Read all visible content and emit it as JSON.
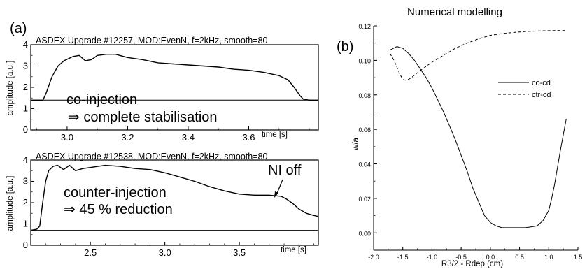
{
  "panel_labels": {
    "a": "(a)",
    "b": "(b)"
  },
  "chart_data": [
    {
      "type": "line",
      "header": "ASDEX Upgrade #12257, MOD:EvenN, f=2kHz, smooth=80",
      "xlabel": "time [s]",
      "ylabel": "amplitude [a.u.]",
      "xlim": [
        2.88,
        3.83
      ],
      "ylim": [
        0,
        4
      ],
      "xticks": [
        "3.0",
        "3.2",
        "3.4",
        "3.6"
      ],
      "yticks": [
        "0",
        "1",
        "2",
        "3",
        "4"
      ],
      "annotations": [
        "co-injection",
        "⇒ complete stabilisation"
      ],
      "baseline": 1.4,
      "grid": false,
      "series": [
        {
          "x": [
            2.88,
            2.92,
            2.93,
            2.95,
            2.97,
            2.99,
            3.02,
            3.04,
            3.06,
            3.08,
            3.1,
            3.13,
            3.16,
            3.2,
            3.25,
            3.3,
            3.35,
            3.4,
            3.45,
            3.5,
            3.55,
            3.6,
            3.65,
            3.7,
            3.73,
            3.75,
            3.77,
            3.78,
            3.8,
            3.83
          ],
          "y": [
            1.4,
            1.4,
            1.7,
            2.5,
            3.0,
            3.25,
            3.45,
            3.5,
            3.25,
            3.3,
            3.5,
            3.55,
            3.55,
            3.4,
            3.3,
            3.15,
            3.1,
            3.05,
            3.0,
            2.95,
            2.85,
            2.8,
            2.7,
            2.55,
            2.35,
            2.0,
            1.6,
            1.45,
            1.4,
            1.4
          ]
        }
      ]
    },
    {
      "type": "line",
      "header": "ASDEX Upgrade #12538, MOD:EvenN, f=2kHz, smooth=80",
      "xlabel": "time [s]",
      "ylabel": "amplitude [a.u.]",
      "xlim": [
        2.1,
        4.03
      ],
      "ylim": [
        0,
        4
      ],
      "xticks": [
        "2.5",
        "3.0",
        "3.5"
      ],
      "yticks": [
        "0",
        "1",
        "2",
        "3",
        "4"
      ],
      "annotations": [
        "counter-injection",
        "⇒ 45 % reduction",
        "NI off"
      ],
      "baseline": 0.7,
      "grid": false,
      "series": [
        {
          "x": [
            2.1,
            2.14,
            2.16,
            2.18,
            2.2,
            2.22,
            2.25,
            2.28,
            2.32,
            2.36,
            2.4,
            2.45,
            2.5,
            2.55,
            2.6,
            2.7,
            2.8,
            2.9,
            3.0,
            3.1,
            3.2,
            3.3,
            3.4,
            3.5,
            3.6,
            3.7,
            3.78,
            3.82,
            3.86,
            3.9,
            3.95,
            4.0,
            4.03
          ],
          "y": [
            0.7,
            0.75,
            0.9,
            2.0,
            3.0,
            3.5,
            3.7,
            3.75,
            3.55,
            3.75,
            3.5,
            3.6,
            3.65,
            3.7,
            3.75,
            3.7,
            3.6,
            3.55,
            3.4,
            3.2,
            3.0,
            2.75,
            2.55,
            2.4,
            2.35,
            2.35,
            2.3,
            2.15,
            1.95,
            1.7,
            1.5,
            1.4,
            1.35
          ]
        }
      ]
    },
    {
      "type": "line",
      "title": "Numerical modelling",
      "xlabel": "R3/2 - Rdep (cm)",
      "ylabel": "w/a",
      "xlim": [
        -2.0,
        1.5
      ],
      "ylim": [
        -0.01,
        0.12
      ],
      "xticks": [
        "-2.0",
        "-1.5",
        "-1.0",
        "-0.5",
        "0.0",
        "0.5",
        "1.0",
        "1.5"
      ],
      "yticks": [
        "0.00",
        "0.02",
        "0.04",
        "0.06",
        "0.08",
        "0.10",
        "0.12"
      ],
      "legend": "right",
      "grid": false,
      "series": [
        {
          "name": "co-cd",
          "dash": "solid",
          "x": [
            -1.72,
            -1.6,
            -1.5,
            -1.4,
            -1.3,
            -1.2,
            -1.1,
            -1.0,
            -0.9,
            -0.8,
            -0.7,
            -0.6,
            -0.5,
            -0.4,
            -0.3,
            -0.2,
            -0.1,
            0.0,
            0.1,
            0.2,
            0.4,
            0.6,
            0.8,
            0.9,
            1.0,
            1.05,
            1.1,
            1.15,
            1.2,
            1.25,
            1.3
          ],
          "y": [
            0.106,
            0.108,
            0.107,
            0.104,
            0.1,
            0.095,
            0.09,
            0.084,
            0.077,
            0.07,
            0.062,
            0.054,
            0.045,
            0.036,
            0.026,
            0.018,
            0.01,
            0.006,
            0.004,
            0.003,
            0.003,
            0.003,
            0.004,
            0.007,
            0.013,
            0.02,
            0.028,
            0.038,
            0.048,
            0.057,
            0.066
          ]
        },
        {
          "name": "ctr-cd",
          "dash": "dashed",
          "x": [
            -1.72,
            -1.65,
            -1.6,
            -1.55,
            -1.5,
            -1.45,
            -1.4,
            -1.35,
            -1.3,
            -1.2,
            -1.1,
            -1.0,
            -0.9,
            -0.8,
            -0.7,
            -0.6,
            -0.5,
            -0.4,
            -0.3,
            -0.2,
            -0.1,
            0.0,
            0.2,
            0.4,
            0.6,
            0.8,
            1.0,
            1.2,
            1.3
          ],
          "y": [
            0.104,
            0.1,
            0.096,
            0.092,
            0.089,
            0.0885,
            0.089,
            0.09,
            0.0915,
            0.094,
            0.0965,
            0.099,
            0.101,
            0.103,
            0.105,
            0.107,
            0.1085,
            0.11,
            0.1112,
            0.1125,
            0.1135,
            0.1145,
            0.1155,
            0.1162,
            0.1167,
            0.117,
            0.1172,
            0.1173,
            0.1173
          ]
        }
      ]
    }
  ]
}
